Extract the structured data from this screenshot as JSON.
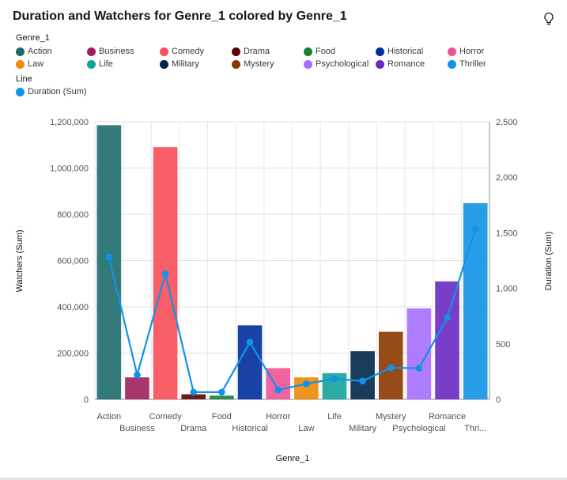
{
  "header": {
    "title": "Duration and Watchers for Genre_1 colored by Genre_1"
  },
  "icons": {
    "insight": "lightbulb-icon"
  },
  "legend": {
    "title": "Genre_1",
    "items": [
      {
        "label": "Action",
        "color": "#1d6b6b"
      },
      {
        "label": "Business",
        "color": "#9f1f5c"
      },
      {
        "label": "Comedy",
        "color": "#fa4d56"
      },
      {
        "label": "Drama",
        "color": "#570408"
      },
      {
        "label": "Food",
        "color": "#198038"
      },
      {
        "label": "Historical",
        "color": "#002d9c"
      },
      {
        "label": "Horror",
        "color": "#ee5396"
      },
      {
        "label": "Law",
        "color": "#ed8a06"
      },
      {
        "label": "Life",
        "color": "#12a39a"
      },
      {
        "label": "Military",
        "color": "#012749"
      },
      {
        "label": "Mystery",
        "color": "#8a3800"
      },
      {
        "label": "Psychological",
        "color": "#a56eff"
      },
      {
        "label": "Romance",
        "color": "#6929c4"
      },
      {
        "label": "Thriller",
        "color": "#1192e8"
      }
    ],
    "line_title": "Line",
    "line_item": {
      "label": "Duration (Sum)",
      "color": "#1192e8"
    }
  },
  "chart_data": {
    "type": "bar",
    "categories": [
      "Action",
      "Business",
      "Comedy",
      "Drama",
      "Food",
      "Historical",
      "Horror",
      "Law",
      "Life",
      "Military",
      "Mystery",
      "Psychological",
      "Romance",
      "Thriller"
    ],
    "category_tick_labels": [
      "Action",
      "Business",
      "Comedy",
      "Drama",
      "Food",
      "Historical",
      "Horror",
      "Law",
      "Life",
      "Military",
      "Mystery",
      "Psychological",
      "Romance",
      "Thri..."
    ],
    "series": [
      {
        "name": "Watchers (Sum)",
        "type": "bar",
        "axis": "left",
        "values": [
          1185000,
          95000,
          1090000,
          22000,
          16000,
          320000,
          135000,
          95000,
          113000,
          208000,
          292000,
          393000,
          510000,
          848000
        ]
      },
      {
        "name": "Duration (Sum)",
        "type": "line",
        "axis": "right",
        "color": "#1192e8",
        "values": [
          1280,
          220,
          1130,
          65,
          65,
          515,
          85,
          140,
          185,
          165,
          285,
          280,
          735,
          1535
        ]
      }
    ],
    "xlabel": "Genre_1",
    "ylabel": "Watchers (Sum)",
    "y2label": "Duration (Sum)",
    "ylim": [
      0,
      1200000
    ],
    "y2lim": [
      0,
      2500
    ],
    "yticks": [
      "0",
      "200,000",
      "400,000",
      "600,000",
      "800,000",
      "1,000,000",
      "1,200,000"
    ],
    "y2ticks": [
      "0",
      "500",
      "1,000",
      "1,500",
      "2,000",
      "2,500"
    ],
    "grid": true,
    "legend_position": "top-left"
  }
}
